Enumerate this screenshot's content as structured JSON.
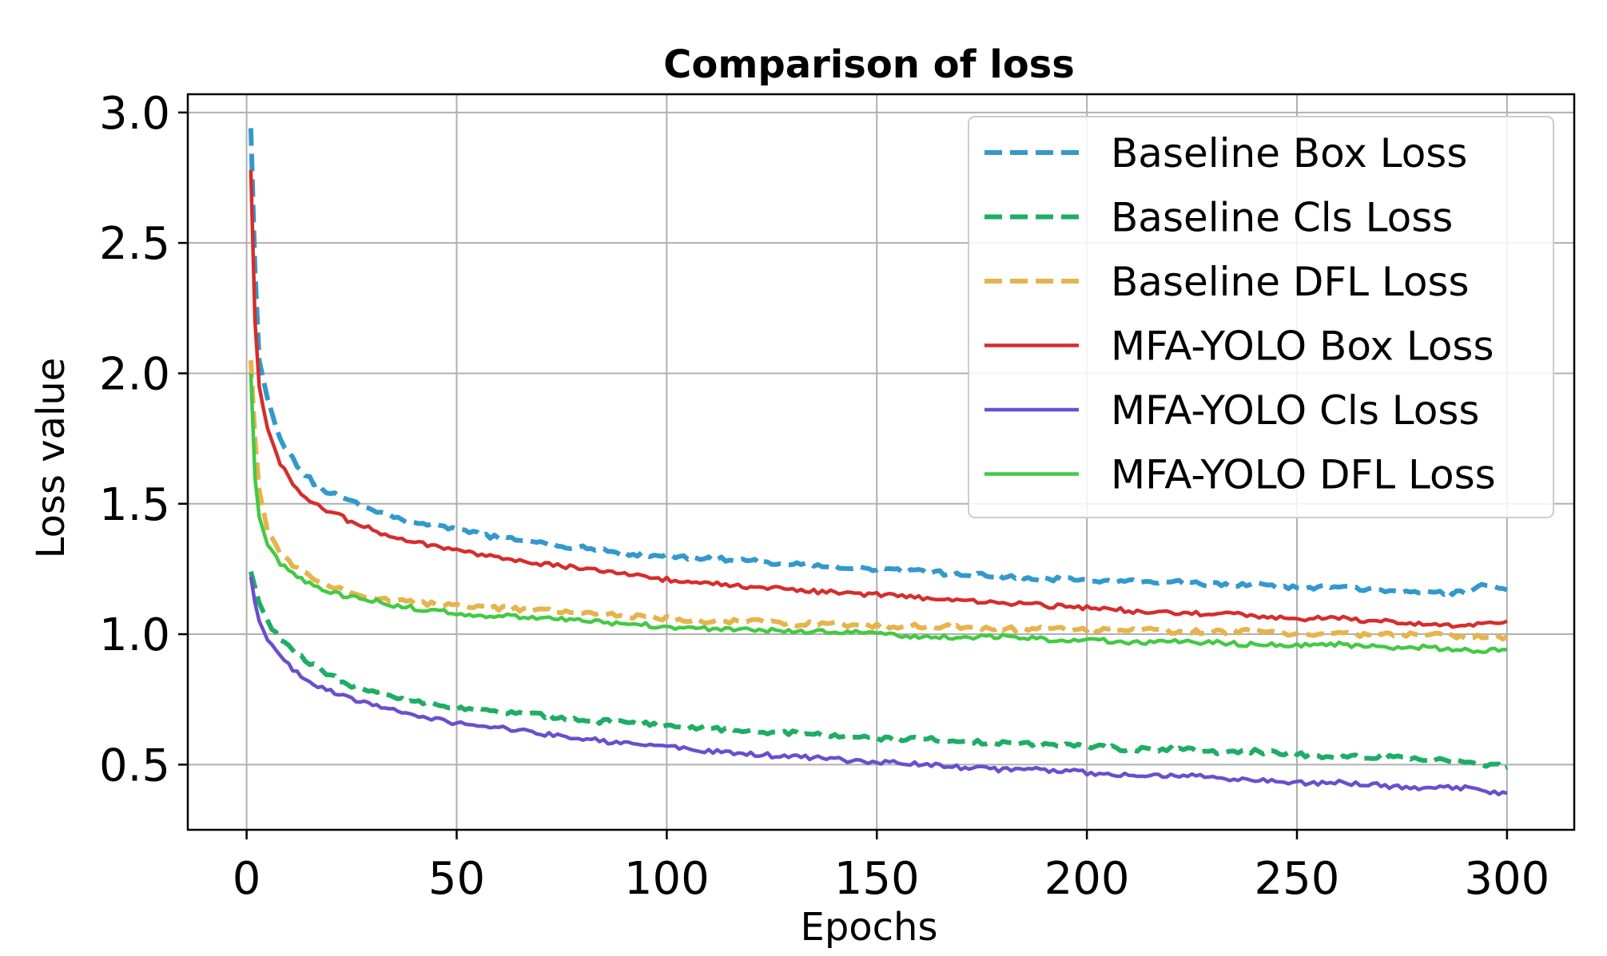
{
  "chart_data": {
    "type": "line",
    "title": "Comparison of loss",
    "xlabel": "Epochs",
    "ylabel": "Loss value",
    "xlim": [
      -14,
      316
    ],
    "ylim": [
      0.25,
      3.07
    ],
    "xticks": [
      0,
      50,
      100,
      150,
      200,
      250,
      300
    ],
    "yticks": [
      0.5,
      1.0,
      1.5,
      2.0,
      2.5,
      3.0
    ],
    "xtick_labels": [
      "0",
      "50",
      "100",
      "150",
      "200",
      "250",
      "300"
    ],
    "ytick_labels": [
      "0.5",
      "1.0",
      "1.5",
      "2.0",
      "2.5",
      "3.0"
    ],
    "grid": true,
    "legend_position": "upper-right",
    "series": [
      {
        "name": "Baseline Box Loss",
        "color": "#3399cc",
        "style": "dashed",
        "x": [
          1,
          2,
          3,
          5,
          8,
          12,
          16,
          20,
          25,
          30,
          35,
          40,
          50,
          60,
          70,
          80,
          90,
          100,
          110,
          120,
          130,
          140,
          150,
          160,
          170,
          180,
          190,
          200,
          210,
          220,
          230,
          240,
          250,
          260,
          270,
          280,
          285,
          290,
          295,
          300
        ],
        "values": [
          2.94,
          2.4,
          2.05,
          1.9,
          1.75,
          1.65,
          1.58,
          1.54,
          1.51,
          1.48,
          1.45,
          1.43,
          1.4,
          1.37,
          1.35,
          1.33,
          1.31,
          1.3,
          1.29,
          1.28,
          1.27,
          1.26,
          1.25,
          1.24,
          1.23,
          1.22,
          1.21,
          1.21,
          1.2,
          1.2,
          1.19,
          1.19,
          1.18,
          1.18,
          1.17,
          1.16,
          1.16,
          1.16,
          1.19,
          1.17
        ]
      },
      {
        "name": "Baseline Cls Loss",
        "color": "#1fad66",
        "style": "dashed",
        "x": [
          1,
          2,
          3,
          5,
          8,
          12,
          16,
          20,
          25,
          30,
          35,
          40,
          50,
          60,
          70,
          80,
          90,
          100,
          110,
          120,
          130,
          140,
          150,
          160,
          170,
          180,
          190,
          200,
          210,
          220,
          230,
          240,
          250,
          260,
          270,
          280,
          290,
          295,
          300
        ],
        "values": [
          1.24,
          1.18,
          1.12,
          1.05,
          0.98,
          0.92,
          0.88,
          0.84,
          0.8,
          0.78,
          0.76,
          0.74,
          0.72,
          0.7,
          0.69,
          0.67,
          0.66,
          0.65,
          0.64,
          0.63,
          0.62,
          0.61,
          0.6,
          0.6,
          0.59,
          0.58,
          0.58,
          0.57,
          0.56,
          0.56,
          0.55,
          0.55,
          0.54,
          0.53,
          0.53,
          0.52,
          0.51,
          0.5,
          0.49
        ]
      },
      {
        "name": "Baseline DFL Loss",
        "color": "#e6b34d",
        "style": "dashed",
        "x": [
          1,
          2,
          3,
          5,
          8,
          12,
          16,
          20,
          25,
          30,
          35,
          40,
          50,
          60,
          70,
          80,
          90,
          100,
          110,
          120,
          130,
          140,
          150,
          160,
          170,
          180,
          190,
          200,
          210,
          220,
          230,
          240,
          250,
          260,
          270,
          280,
          290,
          300
        ],
        "values": [
          2.05,
          1.75,
          1.55,
          1.4,
          1.31,
          1.25,
          1.21,
          1.18,
          1.16,
          1.14,
          1.13,
          1.12,
          1.11,
          1.1,
          1.09,
          1.08,
          1.07,
          1.06,
          1.05,
          1.05,
          1.04,
          1.04,
          1.03,
          1.03,
          1.03,
          1.02,
          1.02,
          1.02,
          1.02,
          1.01,
          1.01,
          1.01,
          1.0,
          1.0,
          1.0,
          1.0,
          0.99,
          0.99
        ]
      },
      {
        "name": "MFA-YOLO Box Loss",
        "color": "#d62d2d",
        "style": "solid",
        "x": [
          1,
          2,
          3,
          5,
          8,
          12,
          16,
          20,
          25,
          30,
          35,
          40,
          50,
          60,
          70,
          80,
          90,
          100,
          110,
          120,
          130,
          140,
          150,
          160,
          170,
          180,
          190,
          200,
          210,
          220,
          230,
          240,
          250,
          260,
          270,
          280,
          290,
          295,
          300
        ],
        "values": [
          2.78,
          2.2,
          1.95,
          1.78,
          1.65,
          1.56,
          1.5,
          1.47,
          1.43,
          1.4,
          1.37,
          1.35,
          1.32,
          1.29,
          1.27,
          1.25,
          1.23,
          1.21,
          1.2,
          1.18,
          1.17,
          1.16,
          1.15,
          1.14,
          1.13,
          1.12,
          1.11,
          1.1,
          1.09,
          1.08,
          1.08,
          1.07,
          1.06,
          1.06,
          1.05,
          1.04,
          1.03,
          1.05,
          1.05
        ]
      },
      {
        "name": "MFA-YOLO Cls Loss",
        "color": "#6a4fcc",
        "style": "solid",
        "x": [
          1,
          2,
          3,
          5,
          8,
          12,
          16,
          20,
          25,
          30,
          35,
          40,
          50,
          60,
          70,
          80,
          90,
          100,
          110,
          120,
          130,
          140,
          150,
          160,
          170,
          180,
          190,
          200,
          210,
          220,
          230,
          240,
          250,
          260,
          270,
          280,
          290,
          295,
          300
        ],
        "values": [
          1.22,
          1.12,
          1.05,
          0.98,
          0.91,
          0.85,
          0.81,
          0.78,
          0.75,
          0.73,
          0.71,
          0.69,
          0.66,
          0.64,
          0.62,
          0.6,
          0.58,
          0.57,
          0.55,
          0.54,
          0.53,
          0.52,
          0.51,
          0.5,
          0.49,
          0.48,
          0.48,
          0.47,
          0.46,
          0.46,
          0.45,
          0.44,
          0.43,
          0.43,
          0.42,
          0.41,
          0.41,
          0.39,
          0.39
        ]
      },
      {
        "name": "MFA-YOLO DFL Loss",
        "color": "#44c944",
        "style": "solid",
        "x": [
          1,
          2,
          3,
          5,
          8,
          12,
          16,
          20,
          25,
          30,
          35,
          40,
          50,
          60,
          70,
          80,
          90,
          100,
          110,
          120,
          130,
          140,
          150,
          160,
          170,
          180,
          190,
          200,
          210,
          220,
          230,
          240,
          250,
          260,
          270,
          280,
          290,
          300
        ],
        "values": [
          2.0,
          1.6,
          1.45,
          1.34,
          1.27,
          1.22,
          1.19,
          1.16,
          1.14,
          1.13,
          1.11,
          1.1,
          1.08,
          1.07,
          1.06,
          1.05,
          1.04,
          1.03,
          1.02,
          1.02,
          1.01,
          1.01,
          1.0,
          0.99,
          0.99,
          0.99,
          0.98,
          0.98,
          0.97,
          0.97,
          0.97,
          0.96,
          0.96,
          0.96,
          0.95,
          0.95,
          0.94,
          0.94
        ]
      }
    ]
  }
}
